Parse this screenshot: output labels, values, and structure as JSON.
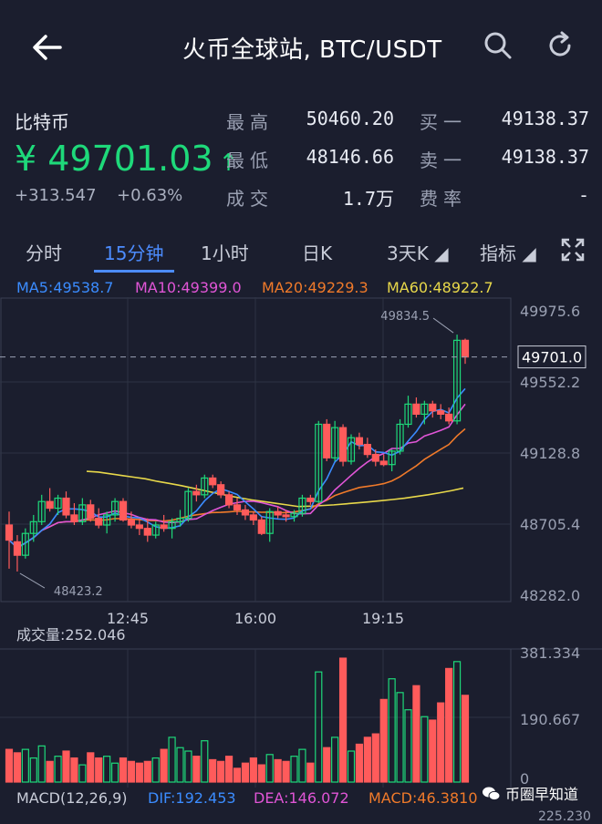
{
  "header": {
    "title": "火币全球站, BTC/USDT",
    "back_icon": "back-arrow-icon",
    "search_icon": "search-icon",
    "refresh_icon": "refresh-icon"
  },
  "quote": {
    "name": "比特币",
    "price": "¥ 49701.03",
    "arrow": "↑",
    "change": "+313.547",
    "change_pct": "+0.63%",
    "high_label": "最高",
    "high_value": "50460.20",
    "low_label": "最低",
    "low_value": "48146.66",
    "vol_label": "成交",
    "vol_value": "1.7万",
    "bid_label": "买一",
    "bid_value": "49138.37",
    "ask_label": "卖一",
    "ask_value": "49138.37",
    "fee_label": "费率",
    "fee_value": "-",
    "colors": {
      "up": "#1ed97a",
      "down": "#ff5b5b",
      "accent": "#4c8cff"
    }
  },
  "tabs": [
    {
      "label": "分时",
      "active": false
    },
    {
      "label": "15分钟",
      "active": true
    },
    {
      "label": "1小时",
      "active": false
    },
    {
      "label": "日K",
      "active": false
    },
    {
      "label": "3天K ◢",
      "active": false
    },
    {
      "label": "指标 ◢",
      "active": false
    }
  ],
  "fullscreen_icon": "fullscreen-icon",
  "ma_legend": {
    "ma5": "MA5:49538.7",
    "ma10": "MA10:49399.0",
    "ma20": "MA20:49229.3",
    "ma60": "MA60:48922.7",
    "colors": {
      "ma5": "#3b8cff",
      "ma10": "#e055d6",
      "ma20": "#f07a2a",
      "ma60": "#e8d84a"
    }
  },
  "chart_data": {
    "type": "candlestick",
    "y_ticks": [
      "49975.6",
      "49552.2",
      "49128.8",
      "48705.4",
      "48282.0"
    ],
    "ylim": [
      48282.0,
      49975.6
    ],
    "x_ticks": [
      "12:45",
      "16:00",
      "19:15"
    ],
    "current_price_label": "49701.0",
    "current_price": 49701.0,
    "max_label": "49834.5",
    "min_label": "48423.2",
    "candles": [
      [
        48700,
        48780,
        48440,
        48610
      ],
      [
        48600,
        48640,
        48423,
        48520
      ],
      [
        48520,
        48680,
        48500,
        48650
      ],
      [
        48650,
        48760,
        48600,
        48720
      ],
      [
        48720,
        48880,
        48700,
        48840
      ],
      [
        48840,
        48920,
        48780,
        48800
      ],
      [
        48800,
        48880,
        48760,
        48860
      ],
      [
        48860,
        48900,
        48740,
        48760
      ],
      [
        48760,
        48830,
        48700,
        48720
      ],
      [
        48720,
        48860,
        48700,
        48820
      ],
      [
        48820,
        48850,
        48720,
        48740
      ],
      [
        48740,
        48800,
        48680,
        48700
      ],
      [
        48700,
        48780,
        48650,
        48760
      ],
      [
        48760,
        48860,
        48720,
        48840
      ],
      [
        48840,
        48860,
        48720,
        48730
      ],
      [
        48730,
        48780,
        48680,
        48700
      ],
      [
        48700,
        48740,
        48640,
        48680
      ],
      [
        48680,
        48740,
        48600,
        48640
      ],
      [
        48640,
        48720,
        48620,
        48700
      ],
      [
        48700,
        48760,
        48660,
        48680
      ],
      [
        48680,
        48740,
        48620,
        48720
      ],
      [
        48720,
        48790,
        48690,
        48740
      ],
      [
        48740,
        48920,
        48720,
        48900
      ],
      [
        48900,
        48940,
        48840,
        48880
      ],
      [
        48880,
        49000,
        48860,
        48980
      ],
      [
        48980,
        49000,
        48920,
        48940
      ],
      [
        48940,
        48960,
        48860,
        48880
      ],
      [
        48880,
        48900,
        48800,
        48820
      ],
      [
        48820,
        48860,
        48760,
        48790
      ],
      [
        48790,
        48820,
        48730,
        48760
      ],
      [
        48760,
        48780,
        48700,
        48730
      ],
      [
        48730,
        48750,
        48640,
        48650
      ],
      [
        48650,
        48800,
        48600,
        48780
      ],
      [
        48780,
        48810,
        48740,
        48760
      ],
      [
        48760,
        48790,
        48720,
        48750
      ],
      [
        48750,
        48790,
        48720,
        48770
      ],
      [
        48770,
        48880,
        48750,
        48860
      ],
      [
        48860,
        48880,
        48820,
        48840
      ],
      [
        48840,
        49320,
        48830,
        49300
      ],
      [
        49300,
        49330,
        49080,
        49100
      ],
      [
        49100,
        49320,
        49080,
        49280
      ],
      [
        49280,
        49300,
        49050,
        49080
      ],
      [
        49080,
        49240,
        49060,
        49220
      ],
      [
        49220,
        49250,
        49150,
        49180
      ],
      [
        49180,
        49220,
        49100,
        49120
      ],
      [
        49120,
        49150,
        49050,
        49080
      ],
      [
        49080,
        49120,
        49050,
        49060
      ],
      [
        49060,
        49150,
        49020,
        49140
      ],
      [
        49140,
        49330,
        49120,
        49300
      ],
      [
        49300,
        49470,
        49280,
        49420
      ],
      [
        49420,
        49460,
        49340,
        49360
      ],
      [
        49360,
        49440,
        49300,
        49420
      ],
      [
        49420,
        49440,
        49340,
        49380
      ],
      [
        49380,
        49420,
        49330,
        49360
      ],
      [
        49360,
        49400,
        49300,
        49320
      ],
      [
        49320,
        49834,
        49300,
        49800
      ],
      [
        49800,
        49810,
        49660,
        49701
      ]
    ],
    "ma60": [
      49020,
      49015,
      49005,
      48995,
      48985,
      48975,
      48960,
      48948,
      48935,
      48920,
      48905,
      48890,
      48875,
      48862,
      48850,
      48840,
      48830,
      48820,
      48810,
      48812,
      48816,
      48820,
      48826,
      48832,
      48838,
      48845,
      48852,
      48860,
      48870,
      48880,
      48892,
      48905,
      48920
    ],
    "volume_label": "成交量:252.046",
    "volume_ticks": [
      "381.334",
      "190.667",
      "0"
    ],
    "volume_max": 381.334,
    "volumes": [
      95,
      85,
      95,
      70,
      105,
      60,
      75,
      90,
      70,
      50,
      85,
      70,
      75,
      55,
      70,
      60,
      55,
      60,
      70,
      95,
      130,
      100,
      90,
      75,
      120,
      65,
      60,
      75,
      40,
      55,
      70,
      50,
      80,
      65,
      60,
      75,
      95,
      55,
      320,
      100,
      130,
      360,
      90,
      110,
      130,
      140,
      240,
      300,
      260,
      210,
      280,
      190,
      180,
      230,
      330,
      350,
      252
    ],
    "macd_legend": {
      "macd": "MACD(12,26,9)",
      "dif": "DIF:192.453",
      "dea": "DEA:146.072",
      "val": "MACD:46.3810"
    },
    "macd_tick": "225.230"
  },
  "watermark": {
    "text": "币圈早知道",
    "icon": "wechat-icon"
  }
}
